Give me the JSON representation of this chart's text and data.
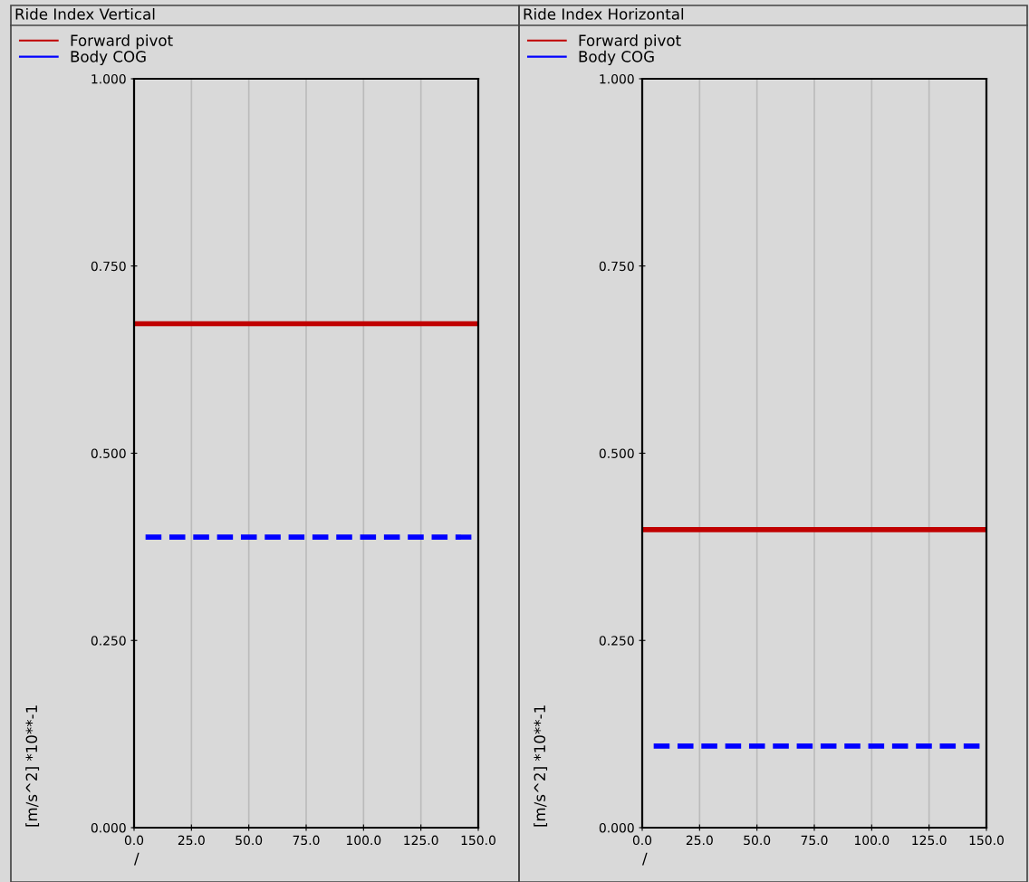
{
  "chart_data": [
    {
      "type": "line",
      "title": "Ride Index Vertical",
      "xlabel": "/",
      "ylabel": "[m/s^2] *10**-1",
      "xlim": [
        0,
        150
      ],
      "ylim": [
        0,
        1
      ],
      "xticks": [
        {
          "value": 0,
          "label": "0.0"
        },
        {
          "value": 25,
          "label": "25.0"
        },
        {
          "value": 50,
          "label": "50.0"
        },
        {
          "value": 75,
          "label": "75.0"
        },
        {
          "value": 100,
          "label": "100.0"
        },
        {
          "value": 125,
          "label": "125.0"
        },
        {
          "value": 150,
          "label": "150.0"
        }
      ],
      "yticks": [
        {
          "value": 0,
          "label": "0.000"
        },
        {
          "value": 0.25,
          "label": "0.250"
        },
        {
          "value": 0.5,
          "label": "0.500"
        },
        {
          "value": 0.75,
          "label": "0.750"
        },
        {
          "value": 1,
          "label": "1.000"
        }
      ],
      "grid": "x",
      "legend": "top left",
      "marker": "none",
      "series": [
        {
          "name": "Forward pivot",
          "color": "#c00000",
          "x": [
            0,
            150
          ],
          "values": [
            0.673,
            0.673
          ],
          "line_style": "solid"
        },
        {
          "name": "Body COG",
          "color": "#0000ff",
          "x": [
            5,
            147
          ],
          "values": [
            0.388,
            0.388
          ],
          "line_style": "dashed"
        }
      ]
    },
    {
      "type": "line",
      "title": "Ride Index Horizontal",
      "xlabel": "/",
      "ylabel": "[m/s^2] *10**-1",
      "xlim": [
        0,
        150
      ],
      "ylim": [
        0,
        1
      ],
      "xticks": [
        {
          "value": 0,
          "label": "0.0"
        },
        {
          "value": 25,
          "label": "25.0"
        },
        {
          "value": 50,
          "label": "50.0"
        },
        {
          "value": 75,
          "label": "75.0"
        },
        {
          "value": 100,
          "label": "100.0"
        },
        {
          "value": 125,
          "label": "125.0"
        },
        {
          "value": 150,
          "label": "150.0"
        }
      ],
      "yticks": [
        {
          "value": 0,
          "label": "0.000"
        },
        {
          "value": 0.25,
          "label": "0.250"
        },
        {
          "value": 0.5,
          "label": "0.500"
        },
        {
          "value": 0.75,
          "label": "0.750"
        },
        {
          "value": 1,
          "label": "1.000"
        }
      ],
      "grid": "x",
      "legend": "top left",
      "marker": "none",
      "series": [
        {
          "name": "Forward pivot",
          "color": "#c00000",
          "x": [
            0,
            150
          ],
          "values": [
            0.398,
            0.398
          ],
          "line_style": "solid"
        },
        {
          "name": "Body COG",
          "color": "#0000ff",
          "x": [
            5,
            147
          ],
          "values": [
            0.109,
            0.109
          ],
          "line_style": "dashed"
        }
      ]
    }
  ]
}
